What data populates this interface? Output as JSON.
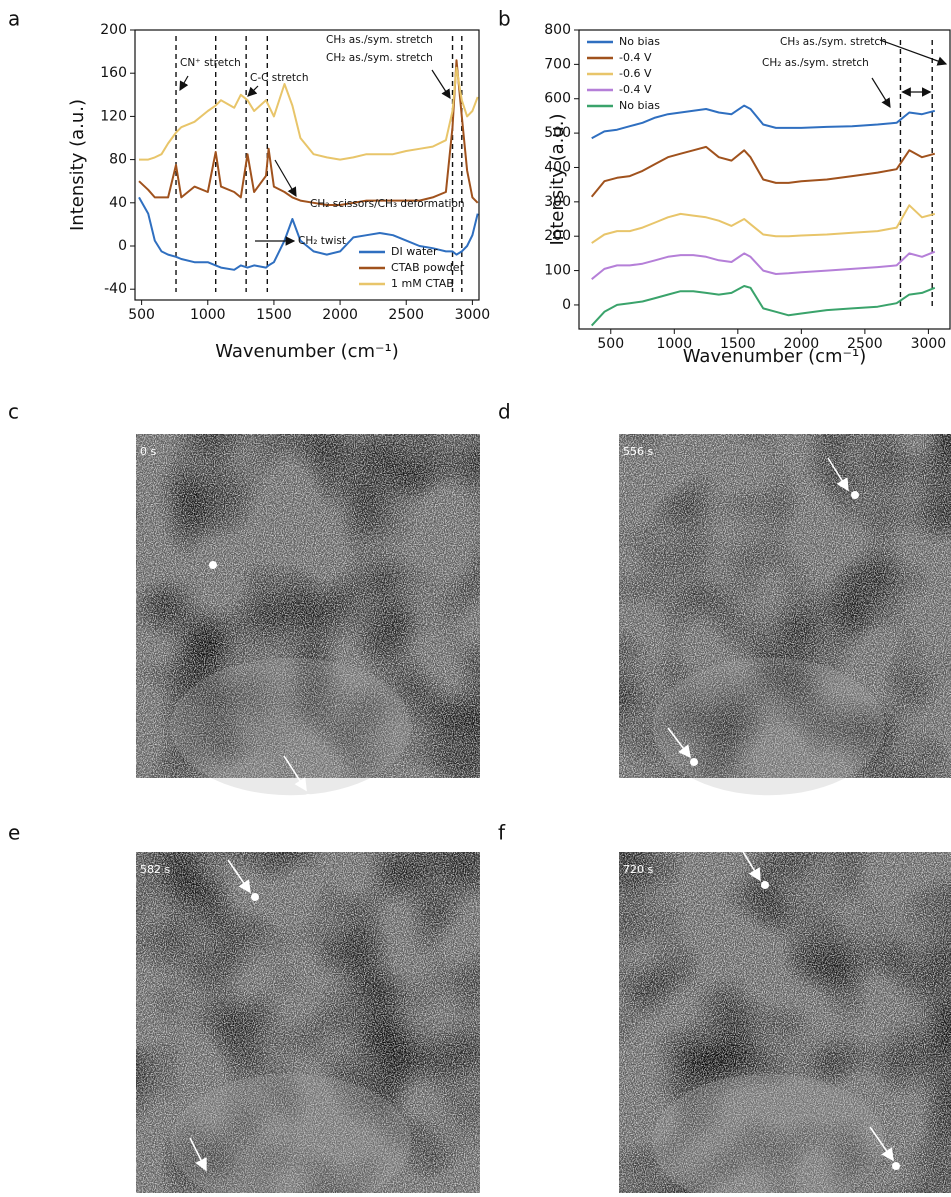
{
  "panel_labels": [
    "a",
    "b",
    "c",
    "d",
    "e",
    "f"
  ],
  "chart_data": [
    {
      "type": "line",
      "x_label": "Wavenumber (cm⁻¹)",
      "y_label": "Intensity (a.u.)",
      "x": [
        480,
        550,
        600,
        650,
        700,
        760,
        800,
        900,
        1000,
        1060,
        1100,
        1200,
        1250,
        1300,
        1350,
        1440,
        1460,
        1500,
        1580,
        1640,
        1700,
        1800,
        1900,
        2000,
        2100,
        2200,
        2300,
        2400,
        2500,
        2600,
        2700,
        2800,
        2850,
        2880,
        2920,
        2960,
        3000,
        3040
      ],
      "series": [
        {
          "name": "DI water",
          "color": "#2f6fc0",
          "values": [
            45,
            30,
            5,
            -5,
            -8,
            -10,
            -12,
            -15,
            -15,
            -18,
            -20,
            -22,
            -18,
            -20,
            -18,
            -20,
            -18,
            -15,
            5,
            25,
            5,
            -5,
            -8,
            -5,
            8,
            10,
            12,
            10,
            5,
            0,
            -2,
            -5,
            -5,
            -8,
            -5,
            0,
            10,
            30
          ]
        },
        {
          "name": "CTAB powder",
          "color": "#a0521d",
          "values": [
            60,
            52,
            45,
            45,
            45,
            75,
            45,
            55,
            50,
            87,
            55,
            50,
            45,
            85,
            50,
            65,
            90,
            55,
            50,
            45,
            42,
            40,
            38,
            38,
            40,
            42,
            42,
            42,
            42,
            42,
            45,
            50,
            110,
            172,
            120,
            70,
            45,
            40
          ]
        },
        {
          "name": "1 mM CTAB",
          "color": "#e8c56a",
          "values": [
            80,
            80,
            82,
            85,
            95,
            105,
            110,
            115,
            125,
            130,
            135,
            128,
            140,
            135,
            125,
            135,
            130,
            120,
            150,
            130,
            100,
            85,
            82,
            80,
            82,
            85,
            85,
            85,
            88,
            90,
            92,
            98,
            125,
            165,
            135,
            120,
            125,
            138
          ]
        }
      ],
      "xlim": [
        450,
        3050
      ],
      "xticks": [
        500,
        1000,
        1500,
        2000,
        2500,
        3000
      ],
      "ylim": [
        -50,
        200
      ],
      "yticks": [
        -40,
        0,
        40,
        80,
        120,
        160,
        200
      ],
      "vlines": [
        760,
        1060,
        1290,
        1450,
        2850,
        2920
      ],
      "annotations": [
        "CN⁺ stretch",
        "C-C stretch",
        "CH₃ as./sym. stretch",
        "CH₂ as./sym. stretch",
        "CH₂ scissors/CH₃ deformation",
        "CH₂ twist"
      ],
      "legend": "lower right"
    },
    {
      "type": "line",
      "x_label": "Wavenumber (cm⁻¹)",
      "y_label": "Intensity (a.u.)",
      "x": [
        350,
        450,
        550,
        650,
        750,
        850,
        950,
        1050,
        1150,
        1250,
        1350,
        1450,
        1550,
        1600,
        1700,
        1800,
        1900,
        2000,
        2200,
        2400,
        2600,
        2750,
        2850,
        2950,
        3050
      ],
      "series": [
        {
          "name": "No bias",
          "color": "#2f6fc0",
          "values": [
            485,
            505,
            510,
            520,
            530,
            545,
            555,
            560,
            565,
            570,
            560,
            555,
            580,
            570,
            525,
            515,
            515,
            515,
            518,
            520,
            525,
            530,
            560,
            555,
            565
          ]
        },
        {
          "name": "-0.4 V",
          "color": "#a0521d",
          "values": [
            315,
            360,
            370,
            375,
            390,
            410,
            430,
            440,
            450,
            460,
            430,
            420,
            450,
            430,
            365,
            355,
            355,
            360,
            365,
            375,
            385,
            395,
            450,
            430,
            440
          ]
        },
        {
          "name": "-0.6 V",
          "color": "#e8c56a",
          "values": [
            180,
            205,
            215,
            215,
            225,
            240,
            255,
            265,
            260,
            255,
            245,
            230,
            250,
            235,
            205,
            200,
            200,
            202,
            205,
            210,
            215,
            225,
            290,
            255,
            265
          ]
        },
        {
          "name": "-0.4 V",
          "color": "#b57fd8",
          "values": [
            75,
            105,
            115,
            115,
            120,
            130,
            140,
            145,
            145,
            140,
            130,
            125,
            150,
            140,
            100,
            90,
            92,
            95,
            100,
            105,
            110,
            115,
            150,
            140,
            155
          ]
        },
        {
          "name": "No bias",
          "color": "#3aa36b",
          "values": [
            -60,
            -20,
            0,
            5,
            10,
            20,
            30,
            40,
            40,
            35,
            30,
            35,
            55,
            50,
            -10,
            -20,
            -30,
            -25,
            -15,
            -10,
            -5,
            5,
            30,
            35,
            50
          ]
        }
      ],
      "xlim": [
        250,
        3170
      ],
      "xticks": [
        500,
        1000,
        1500,
        2000,
        2500,
        3000
      ],
      "ylim": [
        -70,
        800
      ],
      "yticks": [
        0,
        100,
        200,
        300,
        400,
        500,
        600,
        700,
        800
      ],
      "vlines": [
        2780,
        3030
      ],
      "annotations": [
        "CH₃ as./sym. stretch",
        "CH₂ as./sym. stretch"
      ],
      "legend": "upper left"
    }
  ],
  "images": [
    {
      "timestamp": "0 s"
    },
    {
      "timestamp": "556 s"
    },
    {
      "timestamp": "582 s"
    },
    {
      "timestamp": "720 s"
    }
  ]
}
